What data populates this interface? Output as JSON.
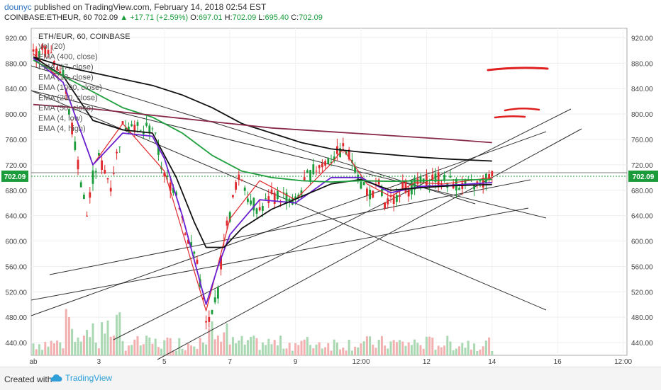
{
  "header": {
    "user": "dounyc",
    "published": "published on TradingView.com, February 14, 2018 02:54 EST",
    "symbol": "COINBASE:ETHEUR, 60",
    "price": "702.09",
    "change": "+17.71 (+2.59%)",
    "ohlc_o_label": "O:",
    "ohlc_o": "697.01",
    "ohlc_h_label": "H:",
    "ohlc_h": "702.09",
    "ohlc_l_label": "L:",
    "ohlc_l": "695.40",
    "ohlc_c_label": "C:",
    "ohlc_c": "702.09"
  },
  "legend": {
    "title": "ETH/EUR, 60, COINBASE",
    "items": [
      "Vol (20)",
      "EMA (400, close)",
      "EMA (17, close)",
      "EMA (18, close)",
      "EMA (1000, close)",
      "EMA (200, close)",
      "EMA (50, close)",
      "EMA (4, low)",
      "EMA (4, high)"
    ]
  },
  "footer": {
    "created_with": "Created with",
    "brand": "TradingView"
  },
  "colors": {
    "candle_up": "#1a9c3a",
    "candle_down": "#e0282d",
    "ema_purple": "#6a1fd0",
    "ema_black": "#111111",
    "ema_green": "#21a040",
    "ema_maroon": "#8a2a4a",
    "volume_up": "#a9d8b2",
    "volume_down": "#f2b0b0",
    "price_badge": "#1a9c3a",
    "annotation": "#e02020"
  },
  "chart_data": {
    "type": "line",
    "title": "ETH/EUR, 60, COINBASE",
    "ylim": [
      420,
      935
    ],
    "yticks": [
      "920.00",
      "880.00",
      "840.00",
      "800.00",
      "760.00",
      "720.00",
      "680.00",
      "640.00",
      "600.00",
      "560.00",
      "520.00",
      "480.00",
      "440.00"
    ],
    "ytick_values": [
      920,
      880,
      840,
      800,
      760,
      720,
      680,
      640,
      600,
      560,
      520,
      480,
      440
    ],
    "x_ticks": [
      "ab",
      "3",
      "5",
      "7",
      "9",
      "12:00",
      "12",
      "14",
      "16",
      "12:00"
    ],
    "x_tick_index": [
      0,
      22,
      44,
      66,
      88,
      110,
      132,
      154,
      176,
      198
    ],
    "x_count": 225,
    "last_price": 702.09,
    "last_price_label": "702.09",
    "price_anchor_index": [
      0,
      5,
      10,
      14,
      18,
      20,
      22,
      26,
      30,
      33,
      36,
      40,
      44,
      48,
      52,
      55,
      58,
      60,
      62,
      64,
      66,
      68,
      70,
      73,
      76,
      80,
      84,
      88,
      92,
      96,
      100,
      104,
      106,
      108,
      110,
      112,
      114,
      116,
      118,
      121,
      124,
      126,
      128,
      131,
      134,
      138,
      142,
      146,
      150,
      154
    ],
    "price_anchor_value": [
      890,
      905,
      860,
      750,
      640,
      700,
      730,
      690,
      780,
      790,
      770,
      780,
      700,
      680,
      600,
      570,
      470,
      480,
      520,
      610,
      640,
      690,
      700,
      660,
      650,
      670,
      670,
      660,
      700,
      720,
      730,
      745,
      735,
      720,
      690,
      680,
      670,
      690,
      655,
      665,
      690,
      682,
      688,
      690,
      700,
      695,
      690,
      685,
      690,
      702
    ],
    "series": [
      {
        "name": "EMA (4, high)",
        "color": "#e0282d",
        "x": [
          0,
          10,
          20,
          30,
          44,
          58,
          66,
          76,
          88,
          100,
          104,
          112,
          120,
          128,
          138,
          154
        ],
        "y": [
          895,
          850,
          720,
          785,
          710,
          490,
          635,
          695,
          665,
          722,
          745,
          690,
          670,
          692,
          690,
          700
        ]
      },
      {
        "name": "EMA (50, close)",
        "color": "#6a1fd0",
        "x": [
          0,
          10,
          20,
          30,
          40,
          44,
          50,
          58,
          62,
          66,
          76,
          88,
          100,
          110,
          120,
          130,
          140,
          154
        ],
        "y": [
          888,
          850,
          720,
          770,
          765,
          730,
          640,
          500,
          560,
          610,
          665,
          660,
          700,
          700,
          676,
          686,
          688,
          692
        ]
      },
      {
        "name": "EMA (200, close)",
        "color": "#111111",
        "x": [
          0,
          10,
          20,
          30,
          40,
          48,
          54,
          58,
          64,
          70,
          80,
          90,
          100,
          110,
          120,
          130,
          140,
          154
        ],
        "y": [
          890,
          860,
          790,
          775,
          770,
          700,
          630,
          590,
          590,
          620,
          650,
          670,
          690,
          697,
          680,
          684,
          687,
          689
        ]
      },
      {
        "name": "EMA (1000, close)",
        "color": "#21a040",
        "x": [
          0,
          10,
          20,
          30,
          40,
          50,
          60,
          70,
          80,
          90,
          100,
          110,
          120,
          130,
          140,
          154
        ],
        "y": [
          885,
          860,
          835,
          810,
          795,
          770,
          735,
          710,
          700,
          695,
          693,
          695,
          694,
          695,
          696,
          697
        ]
      },
      {
        "name": "EMA (400, close)",
        "color": "#111111",
        "x": [
          0,
          10,
          20,
          30,
          40,
          50,
          60,
          70,
          80,
          90,
          100,
          110,
          120,
          130,
          140,
          154
        ],
        "y": [
          890,
          875,
          865,
          855,
          845,
          830,
          810,
          785,
          770,
          755,
          745,
          740,
          736,
          732,
          729,
          726
        ]
      },
      {
        "name": "EMA (18, close)",
        "color": "#8a2a4a",
        "x": [
          0,
          20,
          40,
          60,
          80,
          100,
          120,
          140,
          154
        ],
        "y": [
          815,
          808,
          798,
          788,
          778,
          772,
          766,
          760,
          755
        ]
      }
    ]
  }
}
